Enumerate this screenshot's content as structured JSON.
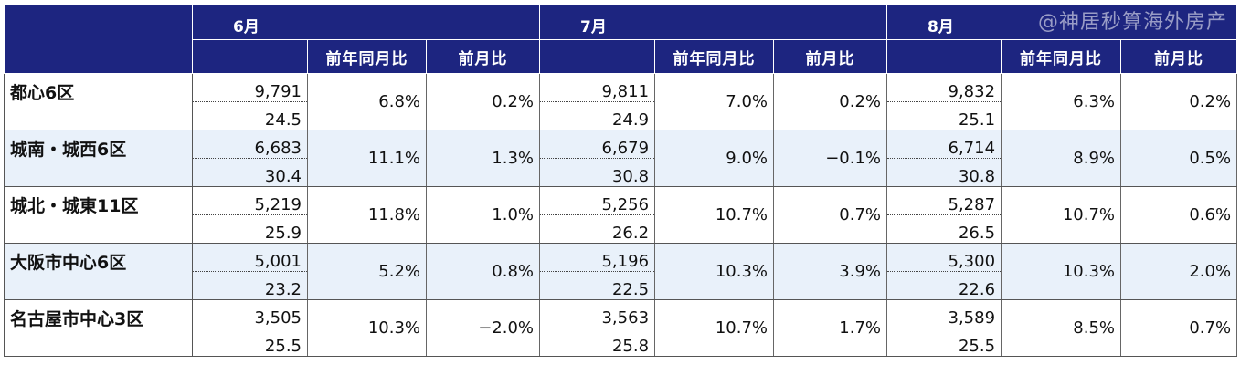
{
  "months": [
    {
      "label": "6月",
      "yoy_label": "前年同月比",
      "mom_label": "前月比"
    },
    {
      "label": "7月",
      "yoy_label": "前年同月比",
      "mom_label": "前月比"
    },
    {
      "label": "8月",
      "yoy_label": "前年同月比",
      "mom_label": "前月比"
    }
  ],
  "watermark": "@神居秒算海外房产",
  "rows": [
    {
      "name": "都心6区",
      "cells": [
        {
          "price": "9,791",
          "size": "24.5",
          "yoy": "6.8%",
          "mom": "0.2%"
        },
        {
          "price": "9,811",
          "size": "24.9",
          "yoy": "7.0%",
          "mom": "0.2%"
        },
        {
          "price": "9,832",
          "size": "25.1",
          "yoy": "6.3%",
          "mom": "0.2%"
        }
      ]
    },
    {
      "name": "城南・城西6区",
      "cells": [
        {
          "price": "6,683",
          "size": "30.4",
          "yoy": "11.1%",
          "mom": "1.3%"
        },
        {
          "price": "6,679",
          "size": "30.8",
          "yoy": "9.0%",
          "mom": "−0.1%"
        },
        {
          "price": "6,714",
          "size": "30.8",
          "yoy": "8.9%",
          "mom": "0.5%"
        }
      ]
    },
    {
      "name": "城北・城東11区",
      "cells": [
        {
          "price": "5,219",
          "size": "25.9",
          "yoy": "11.8%",
          "mom": "1.0%"
        },
        {
          "price": "5,256",
          "size": "26.2",
          "yoy": "10.7%",
          "mom": "0.7%"
        },
        {
          "price": "5,287",
          "size": "26.5",
          "yoy": "10.7%",
          "mom": "0.6%"
        }
      ]
    },
    {
      "name": "大阪市中心6区",
      "cells": [
        {
          "price": "5,001",
          "size": "23.2",
          "yoy": "5.2%",
          "mom": "0.8%"
        },
        {
          "price": "5,196",
          "size": "22.5",
          "yoy": "10.3%",
          "mom": "3.9%"
        },
        {
          "price": "5,300",
          "size": "22.6",
          "yoy": "10.3%",
          "mom": "2.0%"
        }
      ]
    },
    {
      "name": "名古屋市中心3区",
      "cells": [
        {
          "price": "3,505",
          "size": "25.5",
          "yoy": "10.3%",
          "mom": "−2.0%"
        },
        {
          "price": "3,563",
          "size": "25.8",
          "yoy": "10.7%",
          "mom": "1.7%"
        },
        {
          "price": "3,589",
          "size": "25.5",
          "yoy": "8.5%",
          "mom": "0.7%"
        }
      ]
    }
  ],
  "colors": {
    "header": "#1d2580",
    "alt_row": "#e9f1fa",
    "header_text": "#ffffff"
  }
}
